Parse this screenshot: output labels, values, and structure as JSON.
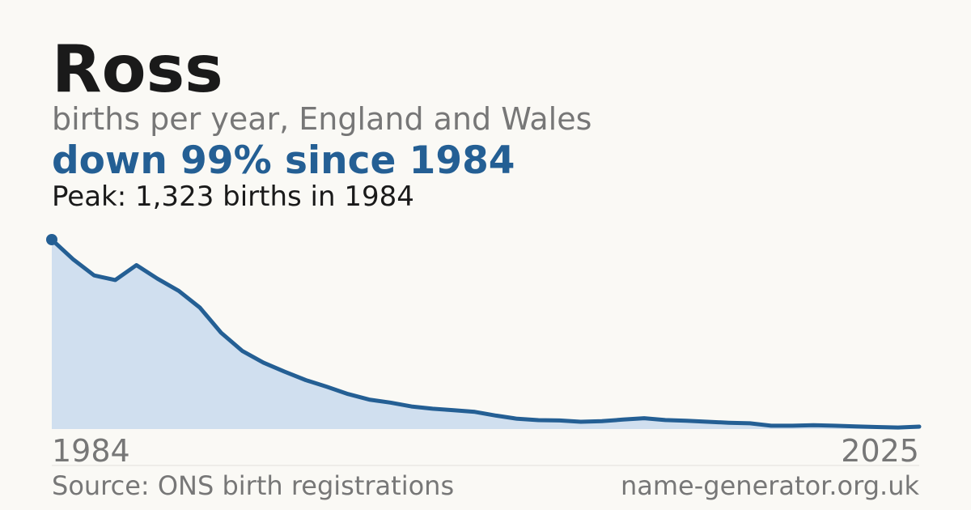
{
  "chart_data": {
    "type": "area",
    "title": "Ross",
    "subtitle": "births per year, England and Wales",
    "headline": "down 99% since 1984",
    "annotation": "Peak: 1,323 births in 1984",
    "source": "Source: ONS birth registrations",
    "site": "name-generator.org.uk",
    "x": [
      1984,
      1985,
      1986,
      1987,
      1988,
      1989,
      1990,
      1991,
      1992,
      1993,
      1994,
      1995,
      1996,
      1997,
      1998,
      1999,
      2000,
      2001,
      2002,
      2003,
      2004,
      2005,
      2006,
      2007,
      2008,
      2009,
      2010,
      2011,
      2012,
      2013,
      2014,
      2015,
      2016,
      2017,
      2018,
      2019,
      2020,
      2021,
      2022,
      2023,
      2024,
      2025
    ],
    "values": [
      1323,
      1187,
      1073,
      1041,
      1145,
      1050,
      965,
      848,
      673,
      546,
      464,
      401,
      342,
      295,
      245,
      206,
      185,
      158,
      142,
      132,
      120,
      94,
      72,
      62,
      60,
      51,
      55,
      66,
      76,
      63,
      58,
      51,
      44,
      40,
      23,
      23,
      27,
      23,
      18,
      14,
      11,
      17
    ],
    "color": "#245f94",
    "area_color": "#d0dfef",
    "xlim": [
      1984,
      2025
    ],
    "xticks": [
      1984,
      2025
    ],
    "ylim": [
      0,
      1323
    ]
  }
}
